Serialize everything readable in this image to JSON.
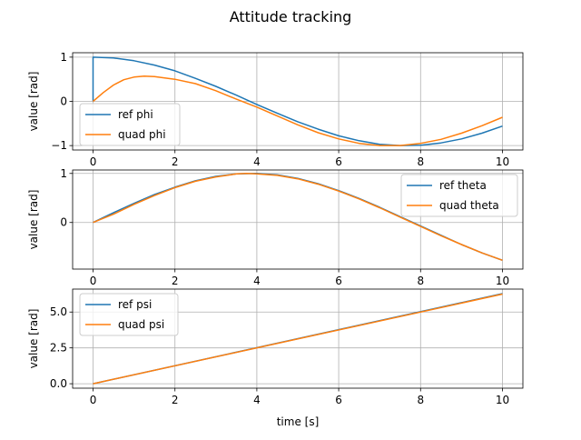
{
  "figure": {
    "title": "Attitude tracking",
    "xlabel": "time [s]"
  },
  "chart_data": [
    {
      "type": "line",
      "ylabel": "value [rad]",
      "xlim": [
        -0.5,
        10.5
      ],
      "ylim": [
        -1.1,
        1.1
      ],
      "xticks": [
        0,
        2,
        4,
        6,
        8,
        10
      ],
      "yticks": [
        -1,
        0,
        1
      ],
      "ytick_labels": [
        "−1",
        "0",
        "1"
      ],
      "grid": true,
      "legend": "bottom-left",
      "colors": {
        "ref": "#1f77b4",
        "quad": "#ff7f0e"
      },
      "series": [
        {
          "name": "ref phi",
          "x": [
            0,
            0,
            0.5,
            1,
            1.5,
            2,
            2.5,
            3,
            3.5,
            4,
            4.5,
            5,
            5.5,
            6,
            6.5,
            7,
            7.5,
            8,
            8.5,
            9,
            9.5,
            10
          ],
          "y": [
            0,
            1,
            0.98,
            0.92,
            0.82,
            0.69,
            0.52,
            0.34,
            0.14,
            -0.07,
            -0.27,
            -0.46,
            -0.63,
            -0.78,
            -0.89,
            -0.97,
            -1.0,
            -0.99,
            -0.94,
            -0.85,
            -0.72,
            -0.56
          ]
        },
        {
          "name": "quad phi",
          "x": [
            0,
            0.25,
            0.5,
            0.75,
            1,
            1.25,
            1.5,
            2,
            2.5,
            3,
            3.5,
            4,
            4.5,
            5,
            5.5,
            6,
            6.5,
            7,
            7.5,
            8,
            8.5,
            9,
            9.5,
            10
          ],
          "y": [
            0,
            0.2,
            0.37,
            0.49,
            0.55,
            0.57,
            0.56,
            0.5,
            0.4,
            0.24,
            0.05,
            -0.13,
            -0.33,
            -0.53,
            -0.71,
            -0.85,
            -0.95,
            -1.0,
            -1.0,
            -0.95,
            -0.86,
            -0.72,
            -0.55,
            -0.36
          ]
        }
      ]
    },
    {
      "type": "line",
      "ylabel": "value [rad]",
      "xlim": [
        -0.5,
        10.5
      ],
      "ylim": [
        -0.95,
        1.07
      ],
      "xticks": [
        0,
        2,
        4,
        6,
        8,
        10
      ],
      "yticks": [
        0,
        1
      ],
      "ytick_labels": [
        "0",
        "1"
      ],
      "grid": true,
      "legend": "top-right",
      "colors": {
        "ref": "#1f77b4",
        "quad": "#ff7f0e"
      },
      "series": [
        {
          "name": "ref theta",
          "x": [
            0,
            0.5,
            1,
            1.5,
            2,
            2.5,
            3,
            3.5,
            4,
            4.5,
            5,
            5.5,
            6,
            6.5,
            7,
            7.5,
            8,
            8.5,
            9,
            9.5,
            10
          ],
          "y": [
            0,
            0.2,
            0.39,
            0.57,
            0.72,
            0.85,
            0.94,
            0.99,
            1.0,
            0.97,
            0.9,
            0.79,
            0.65,
            0.49,
            0.31,
            0.12,
            -0.07,
            -0.26,
            -0.45,
            -0.62,
            -0.77
          ]
        },
        {
          "name": "quad theta",
          "x": [
            0,
            0.5,
            1,
            1.5,
            2,
            2.5,
            3,
            3.5,
            3.75,
            4,
            4.5,
            5,
            5.5,
            6,
            6.5,
            7,
            7.5,
            8,
            8.5,
            9,
            9.5,
            10
          ],
          "y": [
            0,
            0.17,
            0.37,
            0.55,
            0.71,
            0.84,
            0.93,
            0.99,
            1.0,
            0.99,
            0.96,
            0.89,
            0.78,
            0.64,
            0.48,
            0.3,
            0.11,
            -0.08,
            -0.27,
            -0.45,
            -0.62,
            -0.77
          ]
        }
      ]
    },
    {
      "type": "line",
      "ylabel": "value [rad]",
      "xlim": [
        -0.5,
        10.5
      ],
      "ylim": [
        -0.31,
        6.6
      ],
      "xticks": [
        0,
        2,
        4,
        6,
        8,
        10
      ],
      "xtick_labels": [
        "0",
        "2",
        "4",
        "6",
        "8",
        "10"
      ],
      "yticks": [
        0,
        2.5,
        5
      ],
      "ytick_labels": [
        "0.0",
        "2.5",
        "5.0"
      ],
      "grid": true,
      "legend": "top-left",
      "colors": {
        "ref": "#1f77b4",
        "quad": "#ff7f0e"
      },
      "series": [
        {
          "name": "ref psi",
          "x": [
            0,
            10
          ],
          "y": [
            0,
            6.28
          ]
        },
        {
          "name": "quad psi",
          "x": [
            0,
            10
          ],
          "y": [
            0,
            6.25
          ]
        }
      ]
    }
  ]
}
